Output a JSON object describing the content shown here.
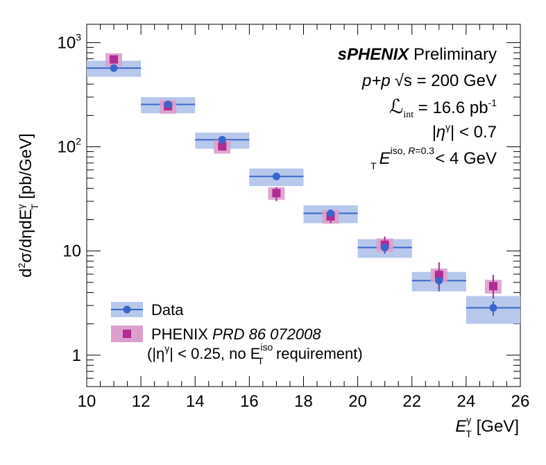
{
  "chart_data": {
    "type": "scatter",
    "xlim": [
      10,
      26
    ],
    "ylim": [
      0.5,
      1500
    ],
    "yscale": "log",
    "x_ticks": [
      "10",
      "12",
      "14",
      "16",
      "18",
      "20",
      "22",
      "24",
      "26"
    ],
    "y_ticks": [
      {
        "value": 1,
        "base": "1",
        "exp": ""
      },
      {
        "value": 10,
        "base": "10",
        "exp": ""
      },
      {
        "value": 100,
        "base": "10",
        "exp": "2"
      },
      {
        "value": 1000,
        "base": "10",
        "exp": "3"
      }
    ],
    "xlabel": {
      "main": "E",
      "sup": "γ",
      "sub": "T",
      "unit": " [GeV]"
    },
    "ylabel": {
      "d1": "d",
      "sup2": "2",
      "mid": "σ/dηdE",
      "supg": "γ",
      "subT": "T",
      "unit": " [pb/GeV]"
    },
    "annotations": {
      "experiment": "sPHENIX",
      "status": " Preliminary",
      "collision_pp": "p+p",
      "sqrt_s": "√s",
      "energy": " = 200 GeV",
      "lumi_sym": "ℒ",
      "lumi_sub": "int",
      "lumi_val": " = 16.6 pb",
      "lumi_exp": "-1",
      "eta_cut_open": "|η",
      "eta_cut_sup": "γ",
      "eta_cut_close": "| < 0.7",
      "iso_E": "E",
      "iso_sup": "iso, ",
      "iso_R": "R",
      "iso_Rval": "=0.3",
      "iso_sub": "T",
      "iso_cut": " < 4 GeV"
    },
    "legend": {
      "placement": "bottom-left",
      "data_label": "Data",
      "phenix_label": "PHENIX ",
      "phenix_ref": "PRD 86 072008",
      "phenix_note_open": "(|η",
      "phenix_note_sup": "γ",
      "phenix_note_mid": "| < 0.25, no  E",
      "phenix_note_sup2": "iso",
      "phenix_note_sub": "T",
      "phenix_note_end": " requirement)"
    },
    "colors": {
      "data_marker": "#3a66c9",
      "data_box": "#b7c8ec",
      "phenix_marker": "#b02b92",
      "phenix_box": "#dca0cd"
    },
    "series": [
      {
        "name": "Data",
        "x": [
          11,
          13,
          15,
          17,
          19,
          21,
          23,
          25
        ],
        "xerr": [
          1,
          1,
          1,
          1,
          1,
          1,
          1,
          1
        ],
        "y": [
          570,
          255,
          117,
          52,
          23,
          10.8,
          5.2,
          2.85
        ],
        "syst_low": [
          470,
          210,
          96,
          42,
          18.5,
          8.6,
          4.1,
          2.0
        ],
        "syst_high": [
          670,
          300,
          137,
          62,
          27.5,
          13.0,
          6.3,
          3.7
        ],
        "stat_low": [
          570,
          255,
          117,
          52,
          23,
          9.4,
          4.1,
          2.4
        ],
        "stat_high": [
          570,
          255,
          117,
          52,
          23,
          12.2,
          6.3,
          3.3
        ]
      },
      {
        "name": "PHENIX",
        "x": [
          11,
          13,
          15,
          17,
          19,
          21,
          23,
          25
        ],
        "y": [
          690,
          245,
          101,
          36,
          21.5,
          11.5,
          5.9,
          4.6
        ],
        "syst_low": [
          590,
          208,
          86,
          31,
          18.3,
          9.8,
          5.0,
          3.9
        ],
        "syst_high": [
          790,
          282,
          116,
          41,
          24.7,
          13.2,
          6.8,
          5.3
        ],
        "stat_low": [
          690,
          245,
          101,
          30,
          18.5,
          9.8,
          4.3,
          3.5
        ],
        "stat_high": [
          690,
          245,
          101,
          41,
          24.5,
          13.8,
          7.8,
          5.9
        ]
      }
    ]
  }
}
